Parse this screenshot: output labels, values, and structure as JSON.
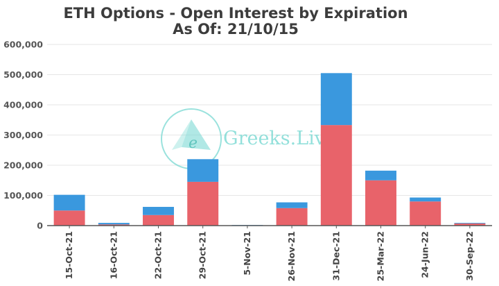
{
  "chart_data": {
    "type": "bar",
    "stacked": true,
    "title": "ETH Options - Open Interest by Expiration",
    "subtitle": "As Of: 21/10/15",
    "xlabel": "",
    "ylabel": "",
    "ylim": [
      0,
      600000
    ],
    "yticks": [
      "0",
      "100,000",
      "200,000",
      "300,000",
      "400,000",
      "500,000",
      "600,000"
    ],
    "grid": true,
    "legend": "none",
    "categories": [
      "15-Oct-21",
      "16-Oct-21",
      "22-Oct-21",
      "29-Oct-21",
      "5-Nov-21",
      "26-Nov-21",
      "31-Dec-21",
      "25-Mar-22",
      "24-Jun-22",
      "30-Sep-22"
    ],
    "series": [
      {
        "color": "#e8636a",
        "values": [
          50000,
          4000,
          35000,
          145000,
          1000,
          58000,
          333000,
          150000,
          80000,
          7000
        ]
      },
      {
        "color": "#3a98de",
        "values": [
          52000,
          5000,
          27000,
          75000,
          1000,
          19000,
          172000,
          32000,
          13000,
          2000
        ]
      }
    ]
  },
  "watermark": {
    "text": "Greeks.Live",
    "logo_letter": "e",
    "color": "#6fd6cf"
  }
}
